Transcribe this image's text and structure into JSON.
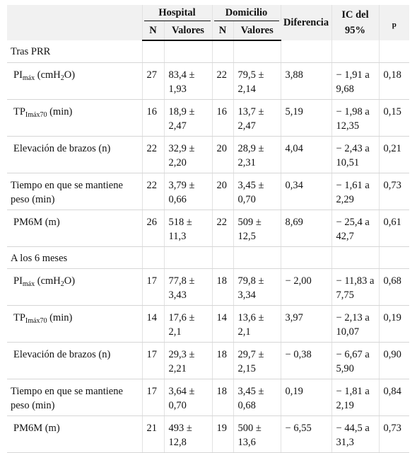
{
  "header": {
    "hospital": "Hospital",
    "domicilio": "Domicilio",
    "diferencia": "Diferencia",
    "ic": "IC del 95%",
    "p": "p",
    "n": "N",
    "valores": "Valores"
  },
  "sections": [
    {
      "title": "Tras PRR",
      "rows": [
        {
          "label_main": "PI",
          "label_sub": "máx",
          "label_post": " (cmH",
          "label_sub2": "2",
          "label_post2": "O)",
          "n1": "27",
          "v1": "83,4 ± 1,93",
          "n2": "22",
          "v2": "79,5 ± 2,14",
          "dif": "3,88",
          "ic": "− 1,91 a 9,68",
          "p": "0,18"
        },
        {
          "label_main": "TP",
          "label_sub": "Imáx70",
          "label_post": " (min)",
          "label_sub2": "",
          "label_post2": "",
          "n1": "16",
          "v1": "18,9 ± 2,47",
          "n2": "16",
          "v2": "13,7 ± 2,47",
          "dif": "5,19",
          "ic": "− 1,98 a 12,35",
          "p": "0,15"
        },
        {
          "label_main": "Elevación de brazos (n)",
          "label_sub": "",
          "label_post": "",
          "label_sub2": "",
          "label_post2": "",
          "n1": "22",
          "v1": "32,9 ± 2,20",
          "n2": "20",
          "v2": "28,9 ± 2,31",
          "dif": "4,04",
          "ic": "− 2,43 a 10,51",
          "p": "0,21"
        },
        {
          "label_main": "Tiempo en que se mantiene peso (min)",
          "label_sub": "",
          "label_post": "",
          "label_sub2": "",
          "label_post2": "",
          "n1": "22",
          "v1": "3,79 ± 0,66",
          "n2": "20",
          "v2": "3,45 ± 0,70",
          "dif": "0,34",
          "ic": "− 1,61 a 2,29",
          "p": "0,73"
        },
        {
          "label_main": "PM6M (m)",
          "label_sub": "",
          "label_post": "",
          "label_sub2": "",
          "label_post2": "",
          "n1": "26",
          "v1": "518 ± 11,3",
          "n2": "22",
          "v2": "509 ± 12,5",
          "dif": "8,69",
          "ic": "− 25,4 a 42,7",
          "p": "0,61"
        }
      ]
    },
    {
      "title": "A los 6 meses",
      "rows": [
        {
          "label_main": "PI",
          "label_sub": "máx",
          "label_post": " (cmH",
          "label_sub2": "2",
          "label_post2": "O)",
          "n1": "17",
          "v1": "77,8 ± 3,43",
          "n2": "18",
          "v2": "79,8 ± 3,34",
          "dif": "− 2,00",
          "ic": "− 11,83 a 7,75",
          "p": "0,68"
        },
        {
          "label_main": "TP",
          "label_sub": "Imáx70",
          "label_post": " (min)",
          "label_sub2": "",
          "label_post2": "",
          "n1": "14",
          "v1": "17,6 ± 2,1",
          "n2": "14",
          "v2": "13,6 ± 2,1",
          "dif": "3,97",
          "ic": "− 2,13 a 10,07",
          "p": "0,19"
        },
        {
          "label_main": "Elevación de brazos (n)",
          "label_sub": "",
          "label_post": "",
          "label_sub2": "",
          "label_post2": "",
          "n1": "17",
          "v1": "29,3 ± 2,21",
          "n2": "18",
          "v2": "29,7 ± 2,15",
          "dif": "− 0,38",
          "ic": "− 6,67 a 5,90",
          "p": "0,90"
        },
        {
          "label_main": "Tiempo en que se mantiene peso (min)",
          "label_sub": "",
          "label_post": "",
          "label_sub2": "",
          "label_post2": "",
          "n1": "17",
          "v1": "3,64 ± 0,70",
          "n2": "18",
          "v2": "3,45 ± 0,68",
          "dif": "0,19",
          "ic": "− 1,81 a 2,19",
          "p": "0,84"
        },
        {
          "label_main": "PM6M (m)",
          "label_sub": "",
          "label_post": "",
          "label_sub2": "",
          "label_post2": "",
          "n1": "21",
          "v1": "493 ± 12,8",
          "n2": "19",
          "v2": "500 ± 13,6",
          "dif": "− 6,55",
          "ic": "− 44,5 a 31,3",
          "p": "0,73"
        }
      ]
    }
  ]
}
